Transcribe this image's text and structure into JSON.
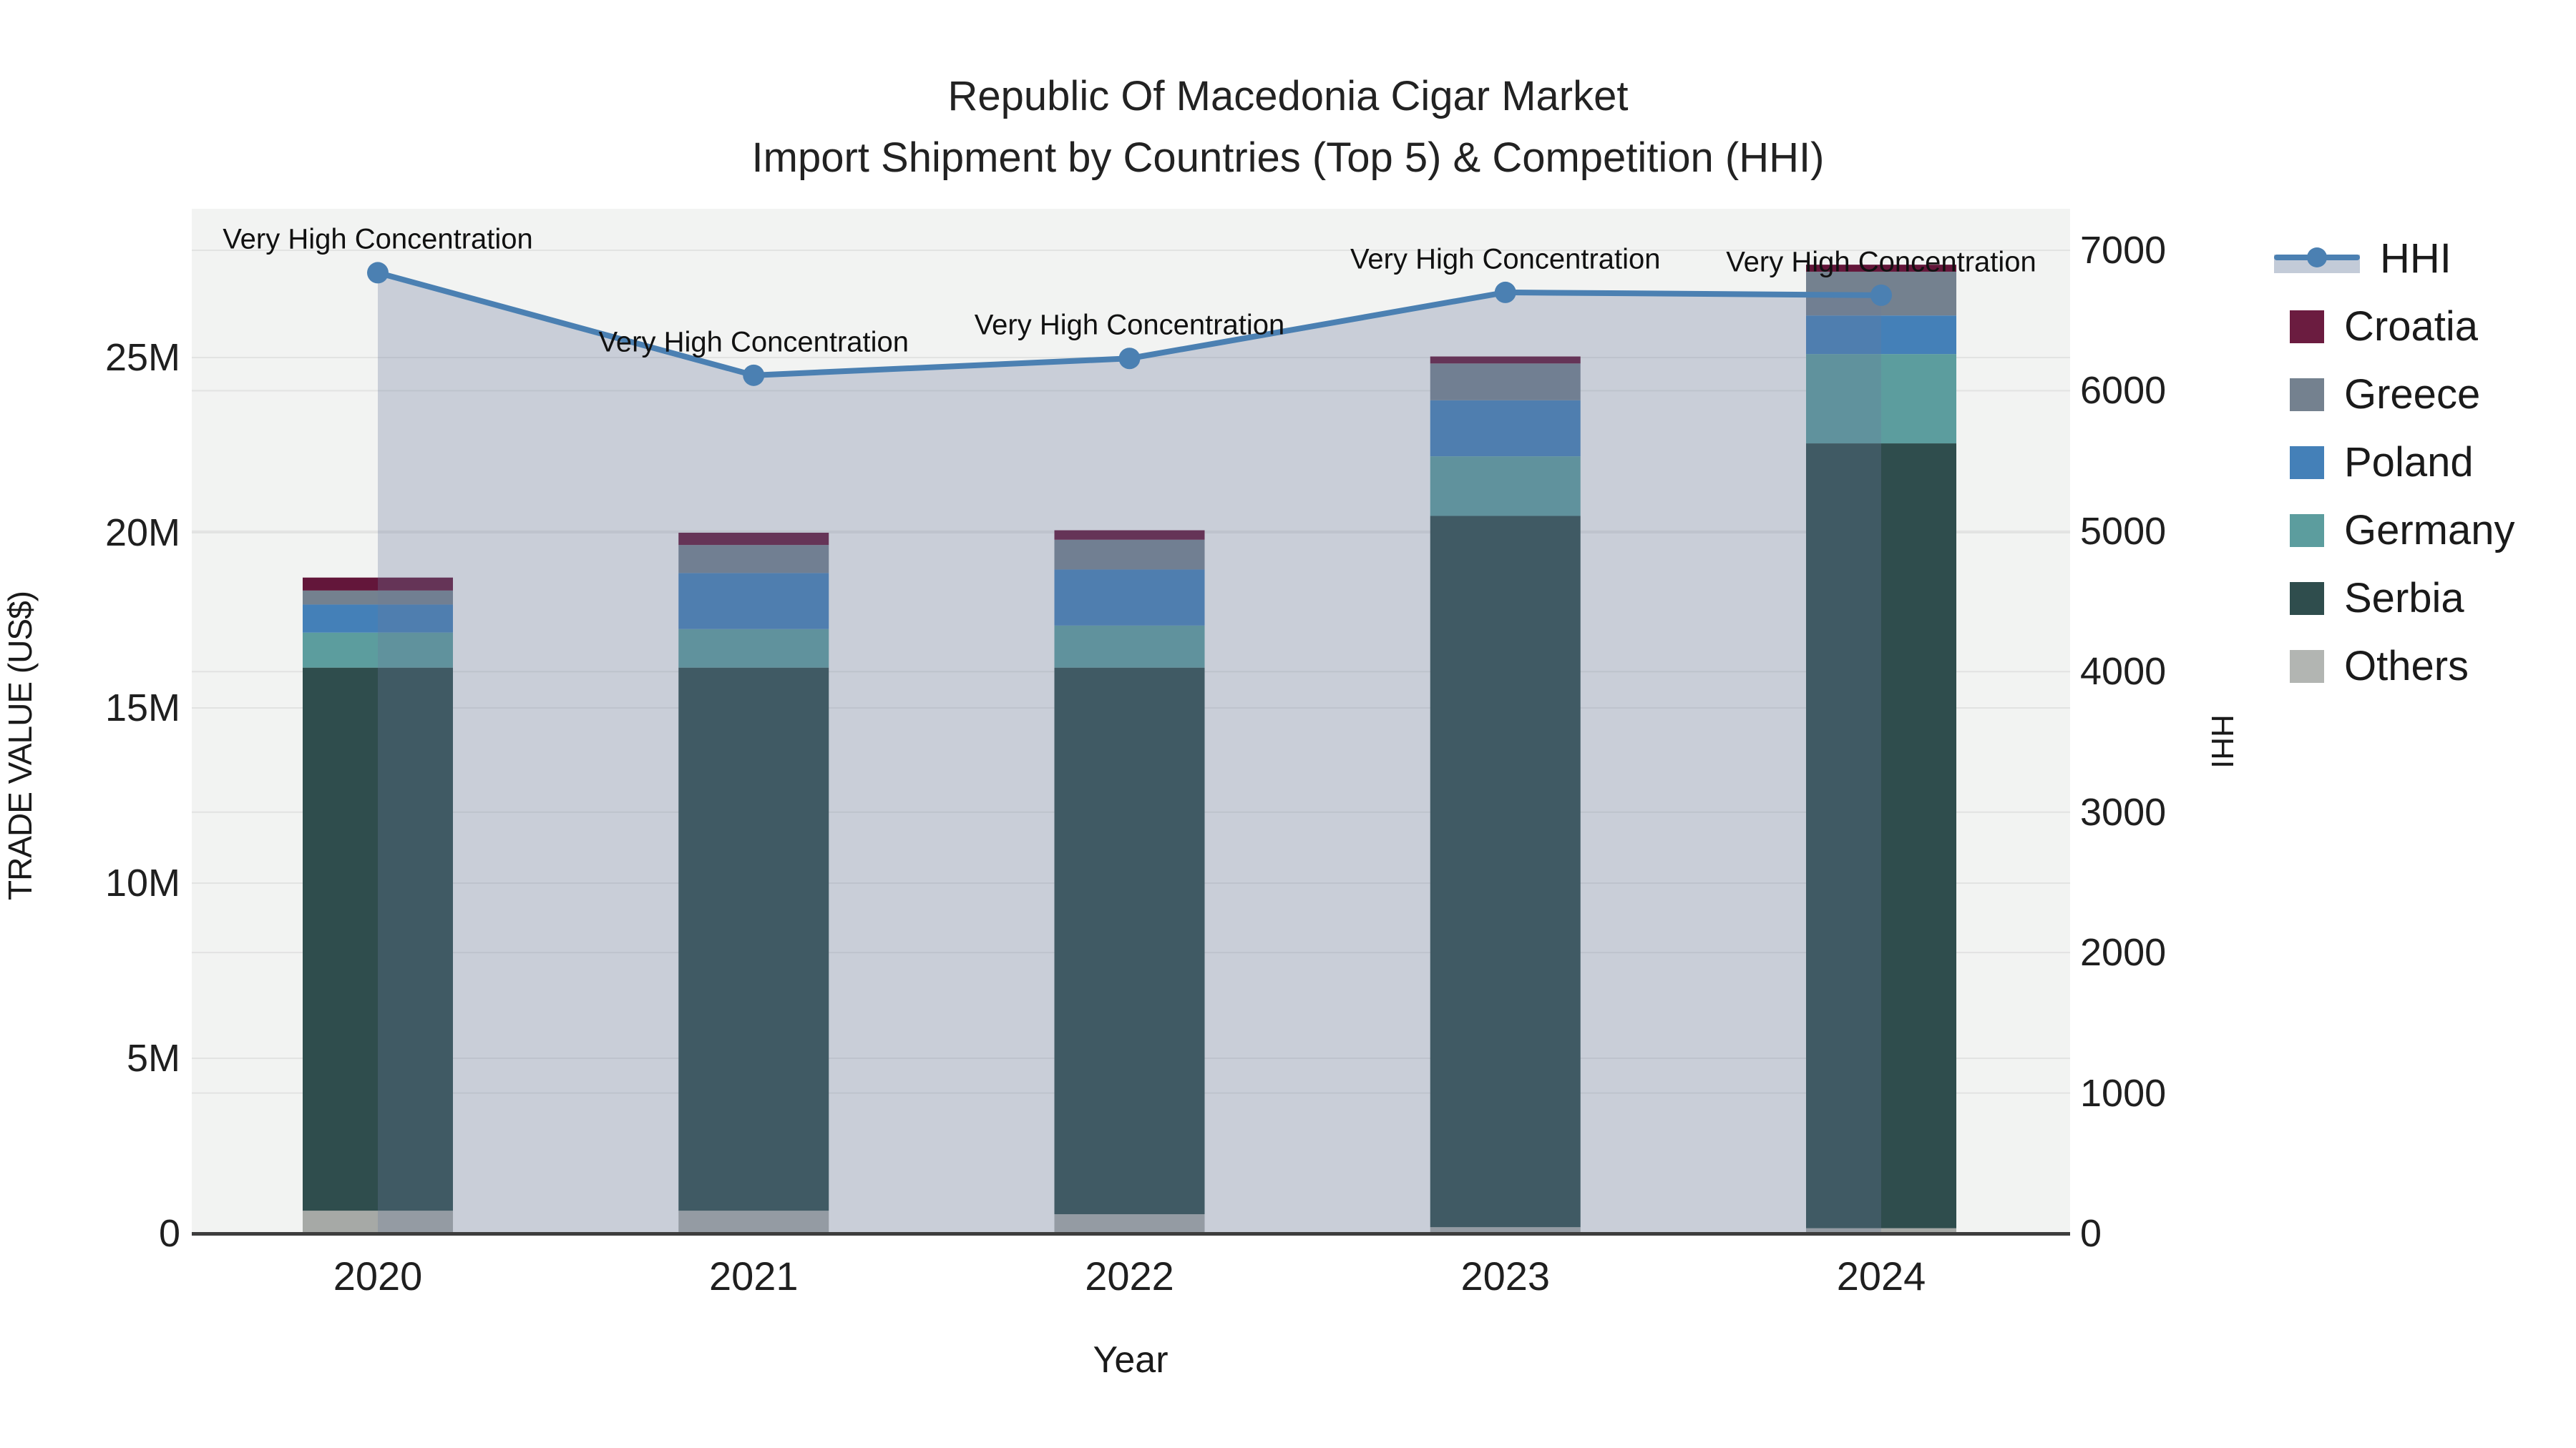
{
  "title": {
    "line1": "Republic Of Macedonia Cigar Market",
    "line2": "Import Shipment by Countries (Top 5) & Competition (HHI)"
  },
  "axes": {
    "x": {
      "title": "Year",
      "categories": [
        "2020",
        "2021",
        "2022",
        "2023",
        "2024"
      ]
    },
    "y_left": {
      "title": "TRADE VALUE (US$)",
      "ticks": [
        "0",
        "5M",
        "10M",
        "15M",
        "20M",
        "25M"
      ],
      "tick_values_millions": [
        0,
        5,
        10,
        15,
        20,
        25
      ]
    },
    "y_right": {
      "title": "HHI",
      "ticks": [
        "0",
        "1000",
        "2000",
        "3000",
        "4000",
        "5000",
        "6000",
        "7000"
      ],
      "tick_values": [
        0,
        1000,
        2000,
        3000,
        4000,
        5000,
        6000,
        7000
      ]
    }
  },
  "chart_data": {
    "type": "bar+line",
    "title": "Republic Of Macedonia Cigar Market — Import Shipment by Countries (Top 5) & Competition (HHI)",
    "categories": [
      "2020",
      "2021",
      "2022",
      "2023",
      "2024"
    ],
    "bar_value_unit": "million US$",
    "stacked_series_bottom_to_top": [
      {
        "name": "Others",
        "color": "#a6a9a6",
        "values": [
          0.65,
          0.65,
          0.55,
          0.18,
          0.15
        ]
      },
      {
        "name": "Serbia",
        "color": "#2f4d4d",
        "values": [
          15.5,
          15.5,
          15.6,
          20.3,
          22.4
        ]
      },
      {
        "name": "Germany",
        "color": "#5c9d9e",
        "values": [
          1.0,
          1.1,
          1.2,
          1.7,
          2.55
        ]
      },
      {
        "name": "Poland",
        "color": "#4480b8",
        "values": [
          0.8,
          1.6,
          1.6,
          1.6,
          1.1
        ]
      },
      {
        "name": "Greece",
        "color": "#74818f",
        "values": [
          0.4,
          0.8,
          0.85,
          1.05,
          1.25
        ]
      },
      {
        "name": "Croatia",
        "color": "#63163a",
        "values": [
          0.37,
          0.35,
          0.27,
          0.2,
          0.2
        ]
      }
    ],
    "bar_totals_millions": [
      18.7,
      19.9,
      20.0,
      25.0,
      27.6
    ],
    "line": {
      "name": "HHI",
      "axis": "right",
      "color": "#4b80b2",
      "area_fill_color": "rgba(107,123,157,0.30)",
      "values": [
        6840,
        6110,
        6230,
        6700,
        6680
      ]
    },
    "annotations": [
      "Very High Concentration",
      "Very High Concentration",
      "Very High Concentration",
      "Very High Concentration",
      "Very High Concentration"
    ],
    "xlabel": "Year",
    "ylabel_left": "TRADE VALUE (US$)",
    "ylabel_right": "HHI",
    "ylim_left_millions": [
      0,
      29.2
    ],
    "ylim_right": [
      0,
      7250
    ],
    "grid": true,
    "legend_position": "right"
  },
  "legend": {
    "items": [
      {
        "label": "HHI",
        "type": "line",
        "color": "#4b80b2",
        "band_color": "#c3cbd8"
      },
      {
        "label": "Croatia",
        "type": "square",
        "color": "#6b1c40"
      },
      {
        "label": "Greece",
        "type": "square",
        "color": "#74818f"
      },
      {
        "label": "Poland",
        "type": "square",
        "color": "#4480b8"
      },
      {
        "label": "Germany",
        "type": "square",
        "color": "#5c9d9e"
      },
      {
        "label": "Serbia",
        "type": "square",
        "color": "#2f4d4d"
      },
      {
        "label": "Others",
        "type": "square",
        "color": "#b2b5b2"
      }
    ]
  },
  "colors": {
    "plot_bg": "#f2f3f2",
    "axis_line": "#3d3d3d",
    "grid_line": "rgba(90,90,90,0.10)",
    "marker": "#4b80b2"
  }
}
